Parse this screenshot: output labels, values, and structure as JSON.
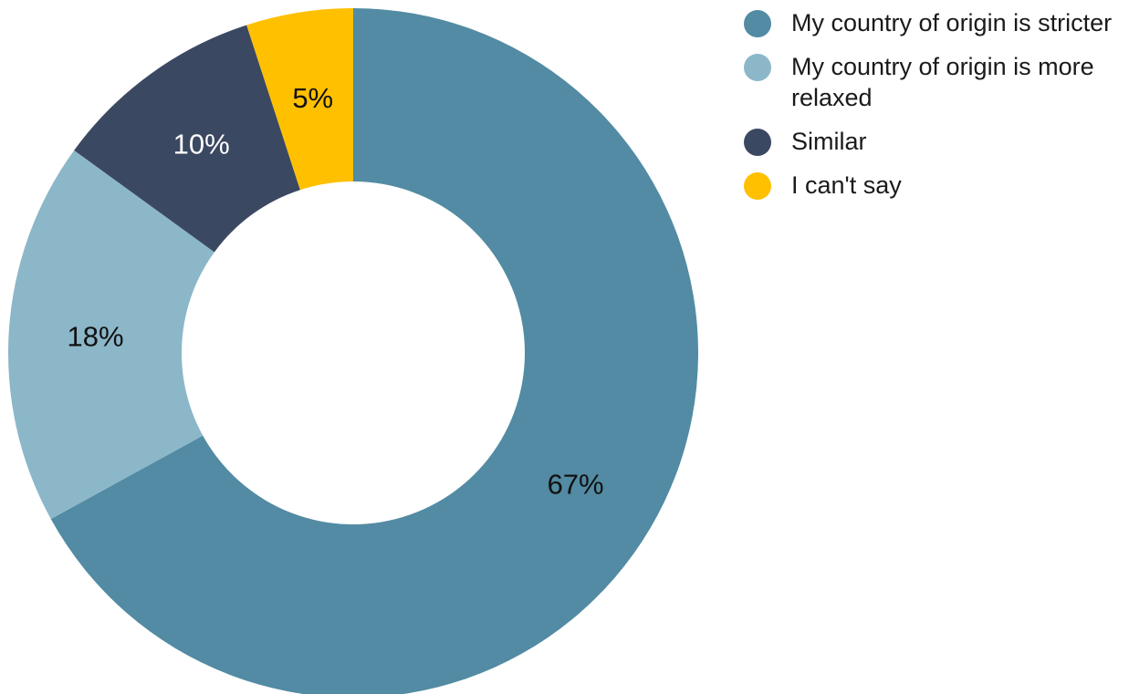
{
  "chart_data": {
    "type": "pie",
    "subtype": "donut",
    "legend_position": "right",
    "slices": [
      {
        "name": "My country of origin is stricter",
        "value": 67,
        "label": "67%",
        "color": "#528ba3",
        "label_color": "#111111"
      },
      {
        "name": "My country of origin is more relaxed",
        "value": 18,
        "label": "18%",
        "color": "#8bb7c9",
        "label_color": "#111111"
      },
      {
        "name": "Similar",
        "value": 10,
        "label": "10%",
        "color": "#3b4862",
        "label_color": "#ffffff"
      },
      {
        "name": "I can't say",
        "value": 5,
        "label": "5%",
        "color": "#ffc000",
        "label_color": "#111111"
      }
    ]
  },
  "legend": {
    "items": [
      {
        "label": "My country of origin is stricter",
        "color": "#528ba3"
      },
      {
        "label": "My country of origin is more relaxed",
        "color": "#8bb7c9"
      },
      {
        "label": "Similar",
        "color": "#3b4862"
      },
      {
        "label": "I can't say",
        "color": "#ffc000"
      }
    ]
  }
}
